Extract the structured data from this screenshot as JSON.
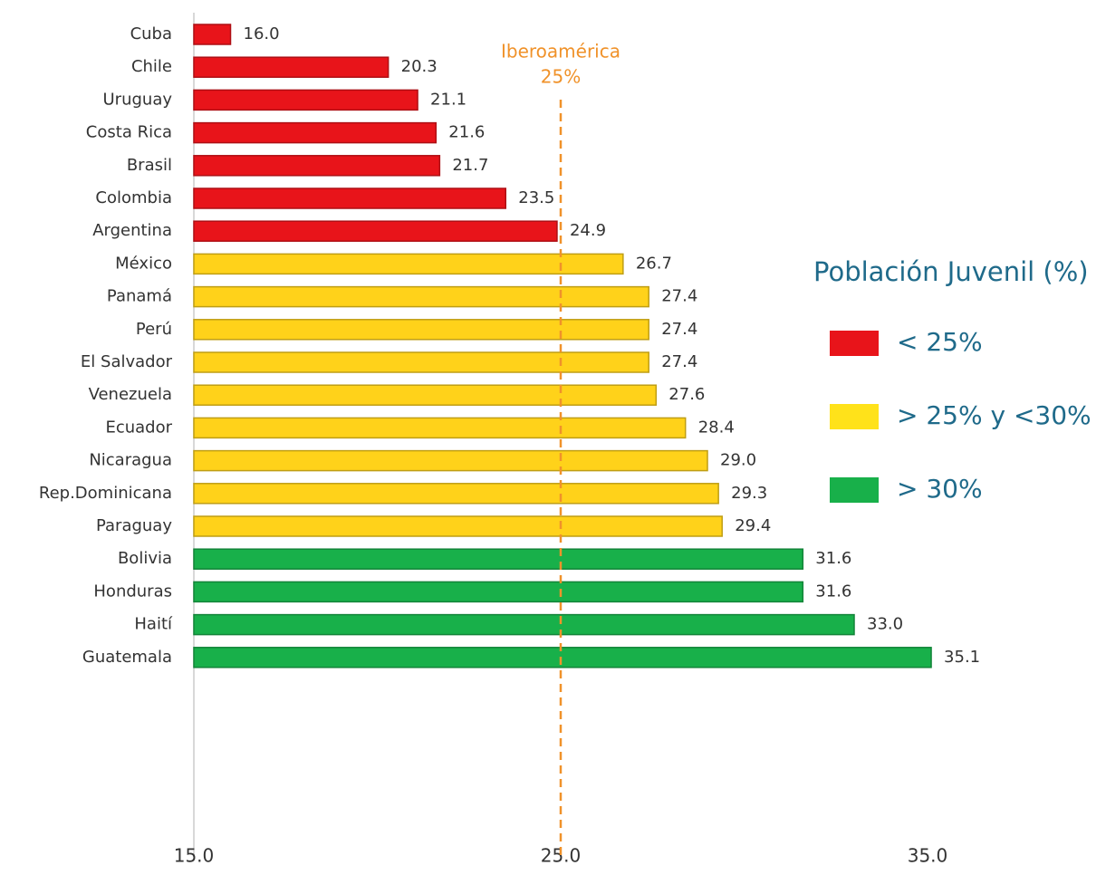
{
  "chart_data": {
    "type": "barh",
    "categories": [
      "Cuba",
      "Chile",
      "Uruguay",
      "Costa Rica",
      "Brasil",
      "Colombia",
      "Argentina",
      "México",
      "Panamá",
      "Perú",
      "El Salvador",
      "Venezuela",
      "Ecuador",
      "Nicaragua",
      "Rep.Dominicana",
      "Paraguay",
      "Bolivia",
      "Honduras",
      "Haití",
      "Guatemala"
    ],
    "values": [
      16.0,
      20.3,
      21.1,
      21.6,
      21.7,
      23.5,
      24.9,
      26.7,
      27.4,
      27.4,
      27.4,
      27.6,
      28.4,
      29.0,
      29.3,
      29.4,
      31.6,
      31.6,
      33.0,
      35.1
    ],
    "value_labels": [
      "16.0",
      "20.3",
      "21.1",
      "21.6",
      "21.7",
      "23.5",
      "24.9",
      "26.7",
      "27.4",
      "27.4",
      "27.4",
      "27.6",
      "28.4",
      "29.0",
      "29.3",
      "29.4",
      "31.6",
      "31.6",
      "33.0",
      "35.1"
    ],
    "colors": [
      "#e8141a",
      "#e8141a",
      "#e8141a",
      "#e8141a",
      "#e8141a",
      "#e8141a",
      "#e8141a",
      "#ffd21a",
      "#ffd21a",
      "#ffd21a",
      "#ffd21a",
      "#ffd21a",
      "#ffd21a",
      "#ffd21a",
      "#ffd21a",
      "#ffd21a",
      "#18b04a",
      "#18b04a",
      "#18b04a",
      "#18b04a"
    ],
    "xlim": [
      15,
      35
    ],
    "xticks": [
      {
        "value": 15,
        "label": "15.0"
      },
      {
        "value": 25,
        "label": "25.0"
      },
      {
        "value": 35,
        "label": "35.0"
      }
    ],
    "reference_line": {
      "value": 25,
      "name": "Iberoamérica",
      "label": "25%",
      "color": "#f0922a"
    },
    "legend": {
      "title": "Población Juvenil (%)",
      "items": [
        {
          "label": "< 25%",
          "color": "#e8141a"
        },
        {
          "label": "> 25% y <30%",
          "color": "#ffe21a"
        },
        {
          "label": "> 30%",
          "color": "#18b04a"
        }
      ]
    }
  }
}
